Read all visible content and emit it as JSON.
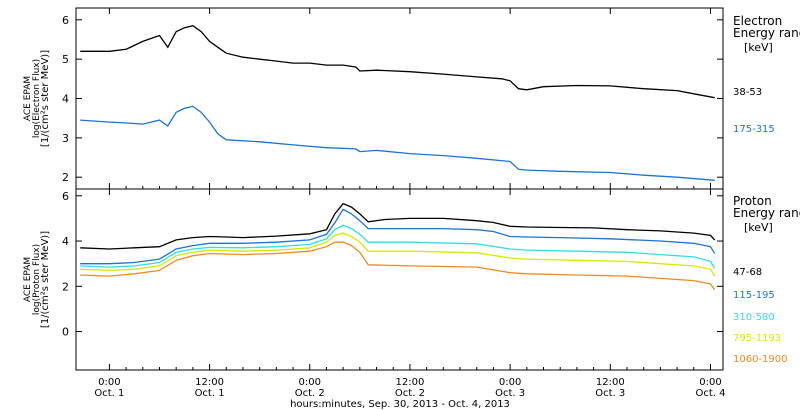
{
  "chart_data": [
    {
      "type": "line",
      "panel": "electron",
      "ylabel_lines": [
        "ACE EPAM",
        "log(Electron Flux)",
        "[1/(cm²s ster MeV)]"
      ],
      "ylim": [
        1.7,
        6.3
      ],
      "yticks": [
        2,
        3,
        4,
        5,
        6
      ],
      "legend_title": [
        "Electron",
        "Energy ranges",
        "[keV]"
      ],
      "series": [
        {
          "name": "38-53",
          "color": "#000000",
          "points": [
            [
              -3.5,
              5.2
            ],
            [
              0,
              5.2
            ],
            [
              2,
              5.25
            ],
            [
              4,
              5.45
            ],
            [
              6,
              5.6
            ],
            [
              7,
              5.3
            ],
            [
              8,
              5.7
            ],
            [
              9,
              5.8
            ],
            [
              10,
              5.85
            ],
            [
              11,
              5.7
            ],
            [
              12,
              5.45
            ],
            [
              13,
              5.3
            ],
            [
              14,
              5.15
            ],
            [
              16,
              5.05
            ],
            [
              18,
              5.0
            ],
            [
              20,
              4.95
            ],
            [
              22,
              4.9
            ],
            [
              24,
              4.9
            ],
            [
              26,
              4.85
            ],
            [
              28,
              4.85
            ],
            [
              29.5,
              4.8
            ],
            [
              30,
              4.7
            ],
            [
              32,
              4.72
            ],
            [
              36,
              4.68
            ],
            [
              40,
              4.62
            ],
            [
              44,
              4.55
            ],
            [
              47,
              4.5
            ],
            [
              48,
              4.45
            ],
            [
              49,
              4.25
            ],
            [
              50,
              4.22
            ],
            [
              52,
              4.3
            ],
            [
              56,
              4.33
            ],
            [
              60,
              4.32
            ],
            [
              64,
              4.25
            ],
            [
              68,
              4.2
            ],
            [
              70,
              4.12
            ],
            [
              72.5,
              4.02
            ]
          ]
        },
        {
          "name": "175-315",
          "color": "#1a74d9",
          "points": [
            [
              -3.5,
              3.45
            ],
            [
              0,
              3.4
            ],
            [
              2,
              3.38
            ],
            [
              4,
              3.35
            ],
            [
              6,
              3.45
            ],
            [
              7,
              3.3
            ],
            [
              8,
              3.65
            ],
            [
              9,
              3.75
            ],
            [
              10,
              3.8
            ],
            [
              11,
              3.65
            ],
            [
              12,
              3.4
            ],
            [
              13,
              3.1
            ],
            [
              14,
              2.95
            ],
            [
              18,
              2.9
            ],
            [
              22,
              2.82
            ],
            [
              26,
              2.75
            ],
            [
              29.5,
              2.72
            ],
            [
              30,
              2.65
            ],
            [
              32,
              2.68
            ],
            [
              36,
              2.6
            ],
            [
              40,
              2.55
            ],
            [
              44,
              2.48
            ],
            [
              48,
              2.4
            ],
            [
              49,
              2.2
            ],
            [
              50,
              2.18
            ],
            [
              54,
              2.15
            ],
            [
              60,
              2.12
            ],
            [
              64,
              2.05
            ],
            [
              68,
              2.0
            ],
            [
              72.5,
              1.92
            ]
          ]
        }
      ]
    },
    {
      "type": "line",
      "panel": "proton",
      "ylabel_lines": [
        "ACE EPAM",
        "log(Proton Flux)",
        "[1/(cm²s ster MeV)]"
      ],
      "ylim": [
        -1.7,
        6.3
      ],
      "yticks": [
        0,
        2,
        4,
        6
      ],
      "legend_title": [
        "Proton",
        "Energy ranges",
        "[keV]"
      ],
      "series": [
        {
          "name": "47-68",
          "color": "#000000",
          "points": [
            [
              -3.5,
              3.7
            ],
            [
              0,
              3.65
            ],
            [
              3,
              3.7
            ],
            [
              6,
              3.75
            ],
            [
              8,
              4.05
            ],
            [
              10,
              4.15
            ],
            [
              12,
              4.2
            ],
            [
              14,
              4.18
            ],
            [
              16,
              4.15
            ],
            [
              20,
              4.22
            ],
            [
              24,
              4.32
            ],
            [
              26,
              4.5
            ],
            [
              27,
              5.2
            ],
            [
              28,
              5.65
            ],
            [
              29,
              5.5
            ],
            [
              30,
              5.2
            ],
            [
              31,
              4.85
            ],
            [
              33,
              4.95
            ],
            [
              36,
              5.0
            ],
            [
              40,
              5.0
            ],
            [
              44,
              4.9
            ],
            [
              46,
              4.82
            ],
            [
              48,
              4.65
            ],
            [
              50,
              4.62
            ],
            [
              54,
              4.6
            ],
            [
              58,
              4.58
            ],
            [
              62,
              4.5
            ],
            [
              66,
              4.45
            ],
            [
              70,
              4.35
            ],
            [
              72,
              4.25
            ],
            [
              72.5,
              4.05
            ]
          ]
        },
        {
          "name": "115-195",
          "color": "#1a74d9",
          "points": [
            [
              -3.5,
              3.0
            ],
            [
              0,
              3.0
            ],
            [
              3,
              3.05
            ],
            [
              6,
              3.2
            ],
            [
              8,
              3.65
            ],
            [
              10,
              3.8
            ],
            [
              12,
              3.9
            ],
            [
              16,
              3.9
            ],
            [
              20,
              3.95
            ],
            [
              24,
              4.05
            ],
            [
              26,
              4.3
            ],
            [
              27,
              4.8
            ],
            [
              28,
              5.4
            ],
            [
              29,
              5.2
            ],
            [
              30,
              4.9
            ],
            [
              31,
              4.55
            ],
            [
              34,
              4.55
            ],
            [
              40,
              4.55
            ],
            [
              44,
              4.5
            ],
            [
              46,
              4.42
            ],
            [
              48,
              4.2
            ],
            [
              50,
              4.18
            ],
            [
              54,
              4.15
            ],
            [
              60,
              4.1
            ],
            [
              66,
              4.0
            ],
            [
              70,
              3.9
            ],
            [
              72,
              3.75
            ],
            [
              72.5,
              3.45
            ]
          ]
        },
        {
          "name": "310-580",
          "color": "#2ee0e0",
          "points": [
            [
              -3.5,
              2.9
            ],
            [
              0,
              2.85
            ],
            [
              3,
              2.9
            ],
            [
              6,
              3.05
            ],
            [
              8,
              3.5
            ],
            [
              10,
              3.65
            ],
            [
              12,
              3.72
            ],
            [
              16,
              3.7
            ],
            [
              20,
              3.75
            ],
            [
              24,
              3.85
            ],
            [
              26,
              4.1
            ],
            [
              27,
              4.5
            ],
            [
              28,
              4.7
            ],
            [
              29,
              4.55
            ],
            [
              30,
              4.3
            ],
            [
              31,
              3.95
            ],
            [
              36,
              3.95
            ],
            [
              44,
              3.88
            ],
            [
              48,
              3.65
            ],
            [
              50,
              3.6
            ],
            [
              56,
              3.55
            ],
            [
              62,
              3.5
            ],
            [
              66,
              3.4
            ],
            [
              70,
              3.3
            ],
            [
              72,
              3.1
            ],
            [
              72.5,
              2.8
            ]
          ]
        },
        {
          "name": "795-1193",
          "color": "#d8e800",
          "points": [
            [
              -3.5,
              2.75
            ],
            [
              0,
              2.7
            ],
            [
              3,
              2.75
            ],
            [
              6,
              2.9
            ],
            [
              8,
              3.35
            ],
            [
              10,
              3.5
            ],
            [
              12,
              3.6
            ],
            [
              16,
              3.55
            ],
            [
              20,
              3.6
            ],
            [
              24,
              3.7
            ],
            [
              26,
              3.95
            ],
            [
              27,
              4.25
            ],
            [
              28,
              4.35
            ],
            [
              29,
              4.2
            ],
            [
              30,
              3.95
            ],
            [
              31,
              3.55
            ],
            [
              36,
              3.55
            ],
            [
              44,
              3.48
            ],
            [
              48,
              3.25
            ],
            [
              50,
              3.2
            ],
            [
              56,
              3.15
            ],
            [
              62,
              3.1
            ],
            [
              66,
              3.0
            ],
            [
              70,
              2.9
            ],
            [
              72,
              2.75
            ],
            [
              72.5,
              2.45
            ]
          ]
        },
        {
          "name": "1060-1900",
          "color": "#f08a1e",
          "points": [
            [
              -3.5,
              2.5
            ],
            [
              0,
              2.45
            ],
            [
              3,
              2.55
            ],
            [
              6,
              2.7
            ],
            [
              8,
              3.15
            ],
            [
              10,
              3.35
            ],
            [
              12,
              3.45
            ],
            [
              16,
              3.4
            ],
            [
              20,
              3.45
            ],
            [
              24,
              3.55
            ],
            [
              26,
              3.75
            ],
            [
              27,
              3.95
            ],
            [
              28,
              3.95
            ],
            [
              29,
              3.8
            ],
            [
              30,
              3.5
            ],
            [
              31,
              2.95
            ],
            [
              36,
              2.9
            ],
            [
              44,
              2.85
            ],
            [
              48,
              2.6
            ],
            [
              50,
              2.55
            ],
            [
              56,
              2.5
            ],
            [
              62,
              2.45
            ],
            [
              66,
              2.35
            ],
            [
              70,
              2.25
            ],
            [
              72,
              2.1
            ],
            [
              72.5,
              1.85
            ]
          ]
        }
      ]
    }
  ],
  "x_axis": {
    "range_hours": [
      -4,
      73.5
    ],
    "ticks": [
      {
        "h": 0,
        "time": "0:00",
        "day": "Oct. 1"
      },
      {
        "h": 12,
        "time": "12:00",
        "day": "Oct. 1"
      },
      {
        "h": 24,
        "time": "0:00",
        "day": "Oct. 2"
      },
      {
        "h": 36,
        "time": "12:00",
        "day": "Oct. 2"
      },
      {
        "h": 48,
        "time": "0:00",
        "day": "Oct. 3"
      },
      {
        "h": 60,
        "time": "12:00",
        "day": "Oct. 3"
      },
      {
        "h": 72,
        "time": "0:00",
        "day": "Oct. 4"
      }
    ],
    "xlabel": "hours:minutes, Sep. 30, 2013 - Oct. 4, 2013"
  }
}
